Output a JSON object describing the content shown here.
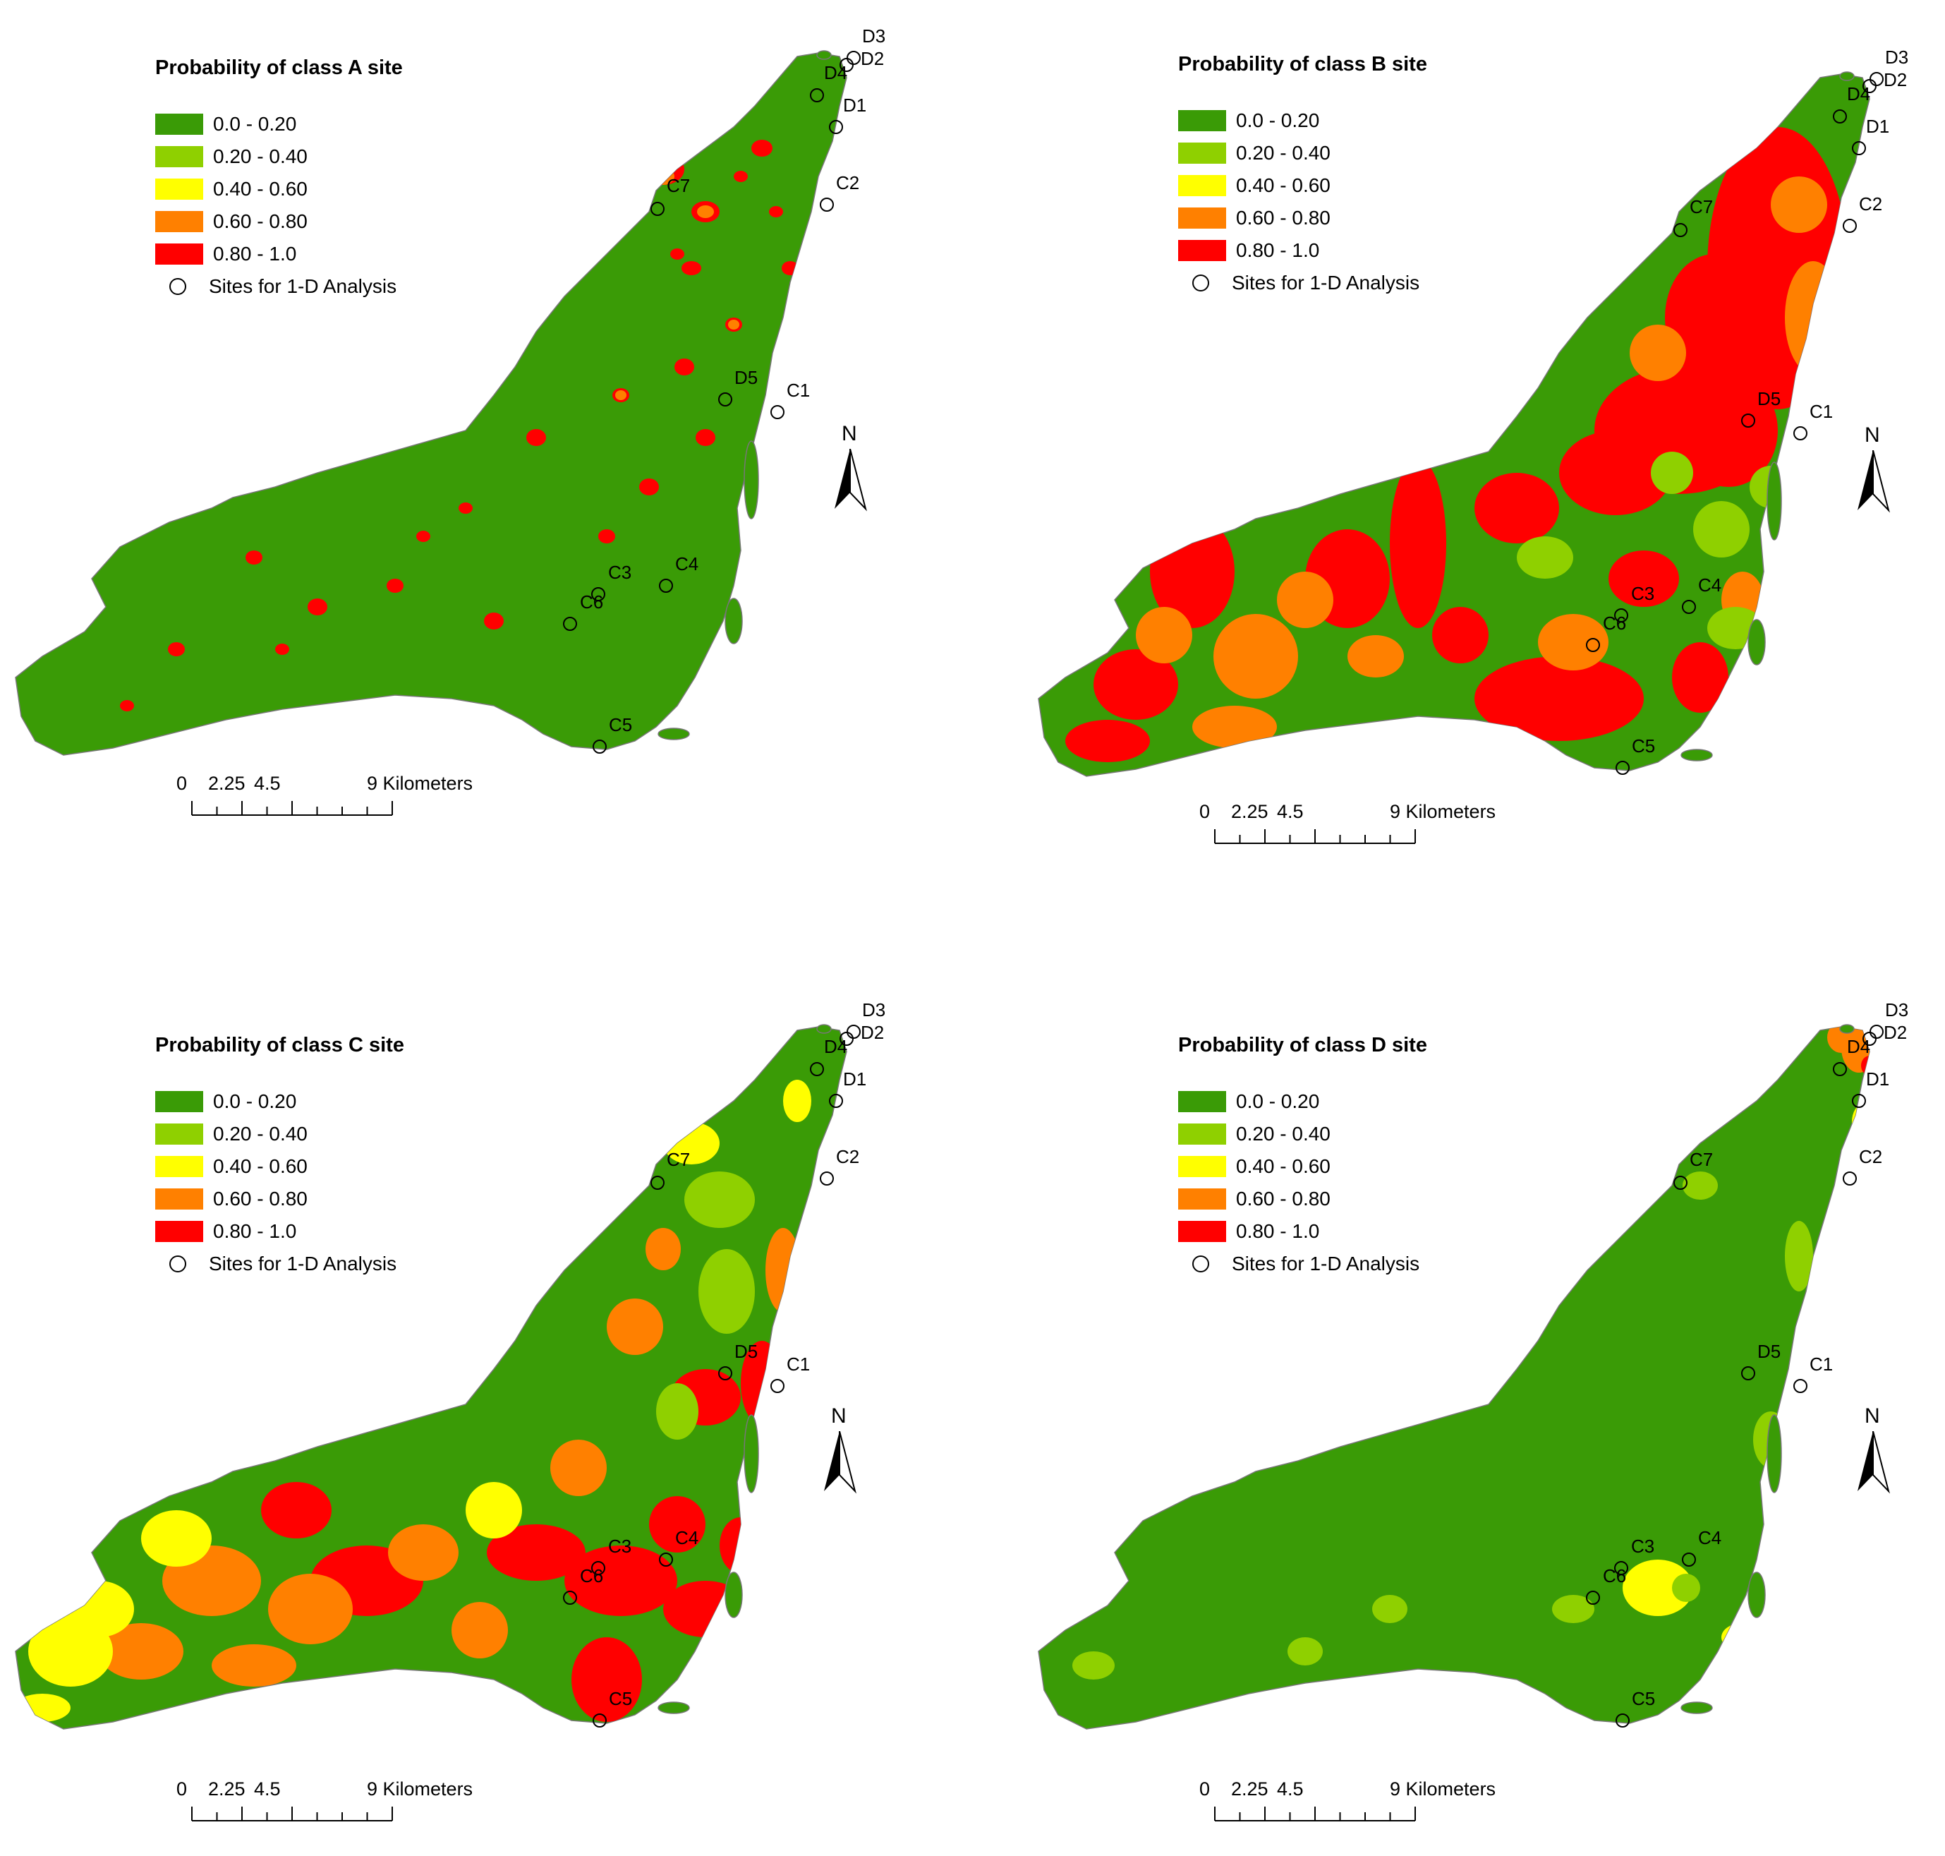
{
  "legend": {
    "classes": [
      {
        "label": "0.0 - 0.20",
        "color": "#3a9b06"
      },
      {
        "label": "0.20 - 0.40",
        "color": "#8fd000"
      },
      {
        "label": "0.40 - 0.60",
        "color": "#ffff00"
      },
      {
        "label": "0.60 - 0.80",
        "color": "#ff8000"
      },
      {
        "label": "0.80 - 1.0",
        "color": "#ff0000"
      }
    ],
    "sites_label": "Sites for 1-D Analysis"
  },
  "scale": {
    "t0": "0",
    "t1": "2.25",
    "t2": "4.5",
    "t3": "9 Kilometers"
  },
  "north": "N",
  "site_names": [
    "D3",
    "D2",
    "D4",
    "D1",
    "C7",
    "C2",
    "D5",
    "C1",
    "C3",
    "C4",
    "C6",
    "C5"
  ],
  "panels": [
    {
      "title": "Probability of class A  site",
      "dominant_class": "0.0 - 0.20",
      "hotspot_class": "0.80 - 1.0"
    },
    {
      "title": "Probability of class B site",
      "dominant_class": "0.80 - 1.0",
      "hotspot_class": "0.40 - 0.60"
    },
    {
      "title": "Probability of class C site",
      "dominant_class": "0.60 - 0.80",
      "hotspot_class": "0.40 - 0.60"
    },
    {
      "title": "Probability of class D site",
      "dominant_class": "0.0 - 0.20",
      "hotspot_class": "0.40 - 0.60"
    }
  ]
}
